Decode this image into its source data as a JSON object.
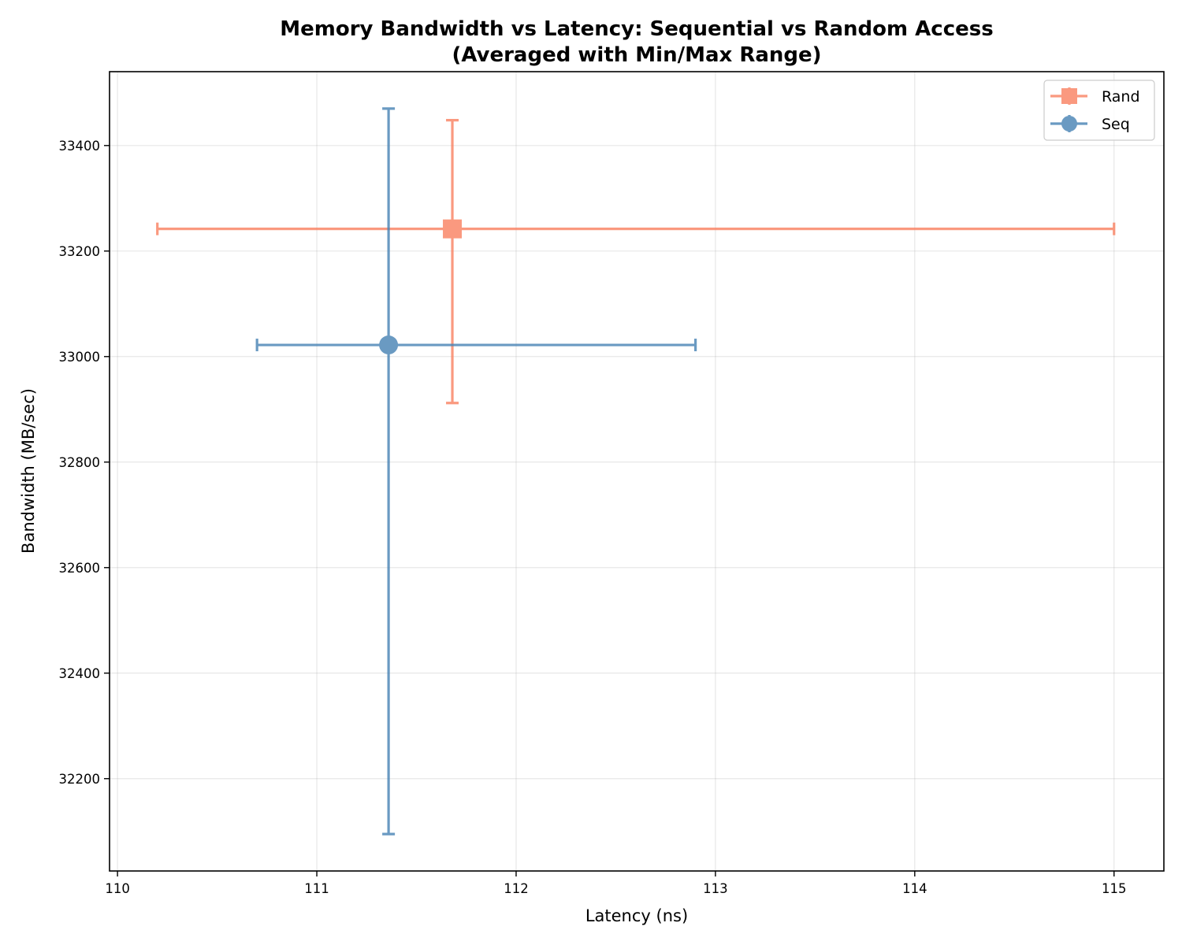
{
  "chart_data": {
    "type": "scatter",
    "title": [
      "Memory Bandwidth vs Latency: Sequential vs Random Access",
      "(Averaged with Min/Max Range)"
    ],
    "xlabel": "Latency (ns)",
    "ylabel": "Bandwidth (MB/sec)",
    "xlim": [
      109.96,
      115.25
    ],
    "ylim": [
      32025,
      33540
    ],
    "xticks": [
      110,
      111,
      112,
      113,
      114,
      115
    ],
    "yticks": [
      32200,
      32400,
      32600,
      32800,
      33000,
      33200,
      33400
    ],
    "grid": true,
    "legend_position": "top-right",
    "series": [
      {
        "name": "Rand",
        "marker": "square",
        "color": "#fa8060",
        "x": 111.68,
        "y": 33242,
        "x_min": 110.2,
        "x_max": 115.0,
        "y_min": 32912,
        "y_max": 33448
      },
      {
        "name": "Seq",
        "marker": "circle",
        "color": "#4682b4",
        "x": 111.36,
        "y": 33022,
        "x_min": 110.7,
        "x_max": 112.9,
        "y_min": 32095,
        "y_max": 33470
      }
    ]
  }
}
